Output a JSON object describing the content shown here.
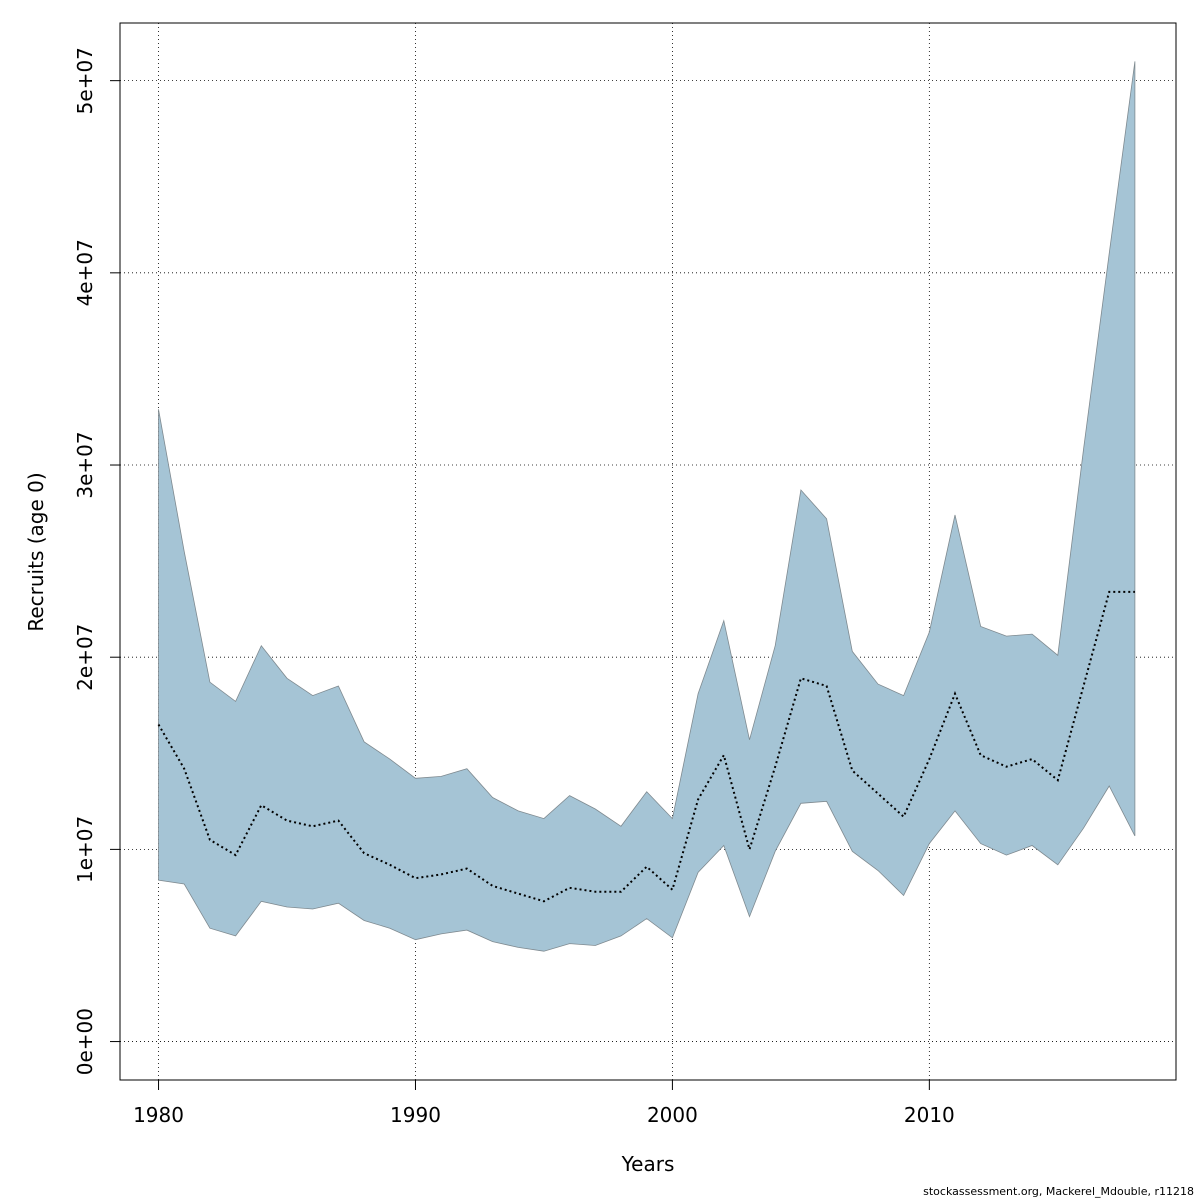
{
  "chart_data": {
    "type": "area",
    "xlabel": "Years",
    "ylabel": "Recruits (age 0)",
    "xlim": [
      1978.5,
      2019.6
    ],
    "ylim": [
      -2000000,
      53000000
    ],
    "x_ticks": [
      1980,
      1990,
      2000,
      2010
    ],
    "y_ticks": [
      0,
      10000000,
      20000000,
      30000000,
      40000000,
      50000000
    ],
    "y_tick_labels": [
      "0e+00",
      "1e+07",
      "2e+07",
      "3e+07",
      "4e+07",
      "5e+07"
    ],
    "grid": true,
    "x": [
      1980,
      1981,
      1982,
      1983,
      1984,
      1985,
      1986,
      1987,
      1988,
      1989,
      1990,
      1991,
      1992,
      1993,
      1994,
      1995,
      1996,
      1997,
      1998,
      1999,
      2000,
      2001,
      2002,
      2003,
      2004,
      2005,
      2006,
      2007,
      2008,
      2009,
      2010,
      2011,
      2012,
      2013,
      2014,
      2015,
      2016,
      2017,
      2018
    ],
    "series": [
      {
        "type": "band",
        "color": "#a5c4d5",
        "upper": [
          32900000,
          25500000,
          18700000,
          17700000,
          20600000,
          18900000,
          18000000,
          18500000,
          15600000,
          14700000,
          13700000,
          13800000,
          14200000,
          12700000,
          12000000,
          11600000,
          12800000,
          12100000,
          11200000,
          13000000,
          11600000,
          18100000,
          21900000,
          15700000,
          20600000,
          28700000,
          27200000,
          20300000,
          18600000,
          18000000,
          21300000,
          27400000,
          21600000,
          21100000,
          21200000,
          20100000,
          30800000,
          41000000,
          51000000
        ],
        "lower": [
          8400000,
          8200000,
          5900000,
          5500000,
          7300000,
          7000000,
          6900000,
          7200000,
          6300000,
          5900000,
          5300000,
          5600000,
          5800000,
          5200000,
          4900000,
          4700000,
          5100000,
          5000000,
          5500000,
          6400000,
          5400000,
          8800000,
          10200000,
          6500000,
          9900000,
          12400000,
          12500000,
          9900000,
          8900000,
          7600000,
          10300000,
          12000000,
          10300000,
          9700000,
          10200000,
          9200000,
          11100000,
          13300000,
          10700000
        ]
      },
      {
        "type": "line",
        "style": "dotted",
        "color": "#000000",
        "values": [
          16500000,
          14200000,
          10500000,
          9700000,
          12300000,
          11500000,
          11200000,
          11500000,
          9800000,
          9200000,
          8500000,
          8700000,
          9000000,
          8100000,
          7700000,
          7300000,
          8000000,
          7800000,
          7800000,
          9100000,
          7900000,
          12600000,
          14900000,
          10000000,
          14300000,
          18900000,
          18500000,
          14100000,
          12900000,
          11700000,
          14700000,
          18100000,
          14900000,
          14300000,
          14700000,
          13600000,
          18500000,
          23400000,
          23400000
        ]
      }
    ]
  },
  "footer": "stockassessment.org, Mackerel_Mdouble, r11218"
}
